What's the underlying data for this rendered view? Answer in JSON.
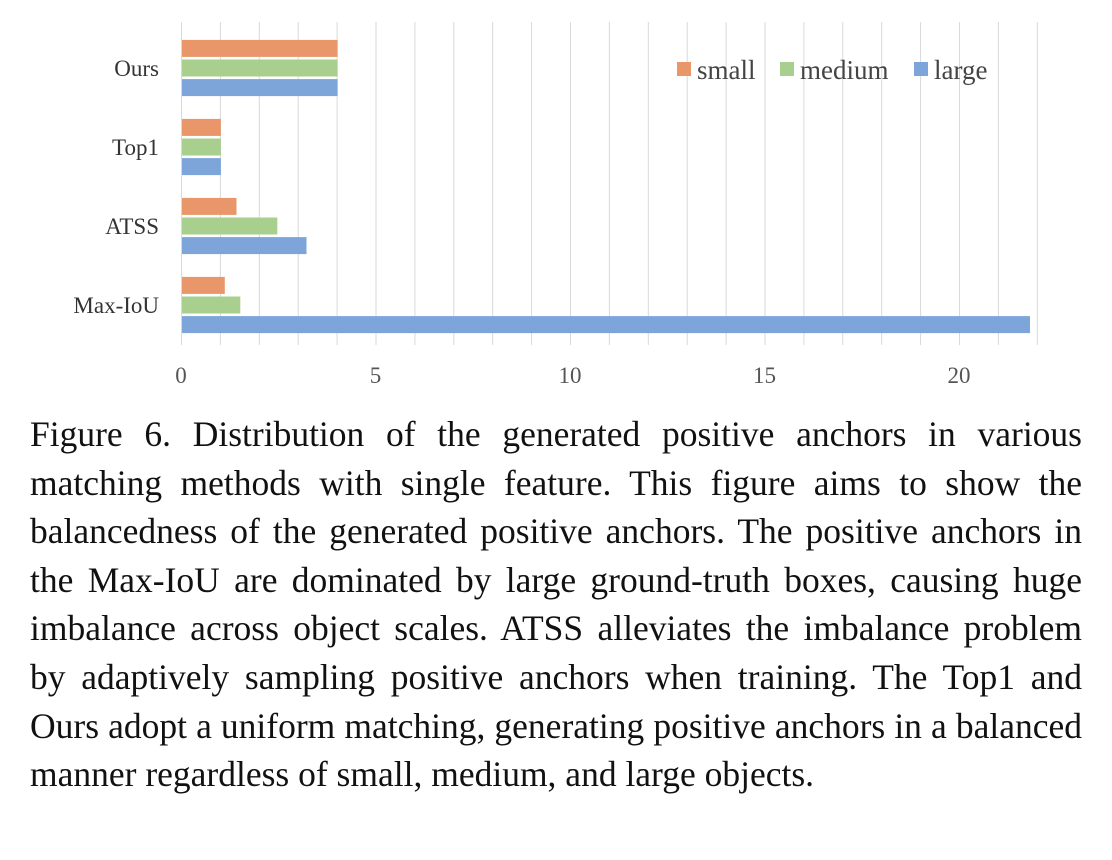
{
  "chart_data": {
    "type": "bar",
    "orientation": "horizontal",
    "categories": [
      "Ours",
      "Top1",
      "ATSS",
      "Max-IoU"
    ],
    "series": [
      {
        "name": "small",
        "color": "#E9976A",
        "values": [
          4,
          1,
          1.4,
          1.1
        ]
      },
      {
        "name": "medium",
        "color": "#A9CF8E",
        "values": [
          4,
          1,
          2.45,
          1.5
        ]
      },
      {
        "name": "large",
        "color": "#7EA5DA",
        "values": [
          4,
          1,
          3.2,
          21.8
        ]
      }
    ],
    "xlim": [
      0,
      22
    ],
    "xticks": [
      0,
      5,
      10,
      15,
      20
    ],
    "xtick_labels": [
      "0",
      "5",
      "10",
      "15",
      "20"
    ],
    "grid": "vertical minor gridlines every 1 unit",
    "legend_position": "top-right",
    "title": "",
    "xlabel": "",
    "ylabel": ""
  },
  "caption": {
    "text": "Figure 6. Distribution of the generated positive anchors in various matching methods with single feature. This figure aims to show the balancedness of the generated positive anchors. The positive anchors in the Max-IoU are dominated by large ground-truth boxes, causing huge imbalance across object scales. ATSS alleviates the imbalance problem by adaptively sampling positive anchors when training. The Top1 and Ours adopt a uniform matching, generating positive anchors in a balanced manner regardless of small, medium, and large objects."
  }
}
